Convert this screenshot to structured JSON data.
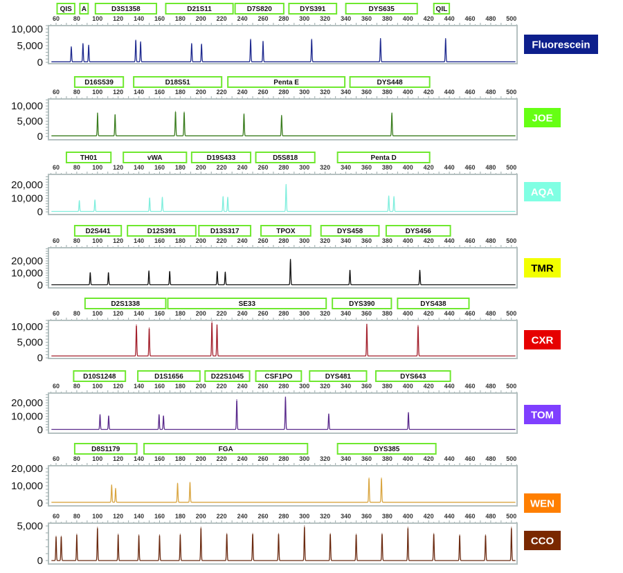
{
  "chart_data": {
    "type": "line",
    "x_axis": {
      "range": [
        55,
        505
      ],
      "tick_labels": [
        60,
        80,
        100,
        120,
        140,
        160,
        180,
        200,
        220,
        240,
        260,
        280,
        300,
        320,
        340,
        360,
        380,
        400,
        420,
        440,
        460,
        480,
        500
      ]
    },
    "grid": false,
    "panels": [
      {
        "dye": "Fluorescein",
        "label_color": "#0d1f8c",
        "label_text_color": "#ffffff",
        "trace_color": "#1f2a8f",
        "ylim": [
          -400,
          11000
        ],
        "yticks": [
          0,
          5000,
          10000
        ],
        "baseline": 150,
        "markers": [
          {
            "name": "QIS",
            "start": 61,
            "end": 78
          },
          {
            "name": "A",
            "start": 83,
            "end": 91
          },
          {
            "name": "D3S1358",
            "start": 98,
            "end": 157
          },
          {
            "name": "D21S11",
            "start": 166,
            "end": 231
          },
          {
            "name": "D7S820",
            "start": 233,
            "end": 280
          },
          {
            "name": "DYS391",
            "start": 285,
            "end": 331
          },
          {
            "name": "DYS635",
            "start": 340,
            "end": 409
          },
          {
            "name": "QIL",
            "start": 425,
            "end": 440
          }
        ],
        "peaks": [
          [
            74.7,
            4500
          ],
          [
            86,
            5500
          ],
          [
            91.5,
            5000
          ],
          [
            137,
            6500
          ],
          [
            141.7,
            6000
          ],
          [
            191,
            5500
          ],
          [
            200.6,
            5300
          ],
          [
            248,
            6800
          ],
          [
            260,
            6200
          ],
          [
            307,
            6800
          ],
          [
            373.5,
            7000
          ],
          [
            436.4,
            7000
          ]
        ]
      },
      {
        "dye": "JOE",
        "label_color": "#66ff14",
        "label_text_color": "#ffffff",
        "trace_color": "#3a7d1e",
        "ylim": [
          -1100,
          12300
        ],
        "yticks": [
          0,
          5000,
          10000
        ],
        "baseline": 200,
        "markers": [
          {
            "name": "D16S539",
            "start": 78,
            "end": 125
          },
          {
            "name": "D18S51",
            "start": 135,
            "end": 220
          },
          {
            "name": "Penta E",
            "start": 226,
            "end": 339
          },
          {
            "name": "DYS448",
            "start": 344,
            "end": 421
          }
        ],
        "peaks": [
          [
            100.1,
            7500
          ],
          [
            117,
            7000
          ],
          [
            175.4,
            8000
          ],
          [
            183.8,
            7800
          ],
          [
            241.6,
            7200
          ],
          [
            277.9,
            6700
          ],
          [
            384.5,
            7500
          ]
        ]
      },
      {
        "dye": "AQA",
        "label_color": "#80ffe3",
        "label_text_color": "#ffffff",
        "trace_color": "#7feedd",
        "ylim": [
          -2000,
          27700
        ],
        "yticks": [
          0,
          10000,
          20000
        ],
        "baseline": 300,
        "markers": [
          {
            "name": "TH01",
            "start": 70,
            "end": 113
          },
          {
            "name": "vWA",
            "start": 125,
            "end": 186
          },
          {
            "name": "D19S433",
            "start": 191,
            "end": 248
          },
          {
            "name": "D5S818",
            "start": 253,
            "end": 310
          },
          {
            "name": "Penta D",
            "start": 332,
            "end": 421
          }
        ],
        "peaks": [
          [
            82.5,
            8000
          ],
          [
            97.5,
            8500
          ],
          [
            150.4,
            10000
          ],
          [
            162.7,
            10500
          ],
          [
            221.4,
            11000
          ],
          [
            225.9,
            10500
          ],
          [
            282.3,
            20000
          ],
          [
            381.5,
            11500
          ],
          [
            386.5,
            11000
          ]
        ]
      },
      {
        "dye": "TMR",
        "label_color": "#f2ff00",
        "label_text_color": "#000000",
        "trace_color": "#111111",
        "ylim": [
          -2300,
          30900
        ],
        "yticks": [
          0,
          10000,
          20000
        ],
        "baseline": 300,
        "markers": [
          {
            "name": "D2S441",
            "start": 78,
            "end": 123
          },
          {
            "name": "D12S391",
            "start": 129,
            "end": 195
          },
          {
            "name": "D13S317",
            "start": 198,
            "end": 248
          },
          {
            "name": "TPOX",
            "start": 258,
            "end": 306
          },
          {
            "name": "DYS458",
            "start": 316,
            "end": 372
          },
          {
            "name": "DYS456",
            "start": 379,
            "end": 441
          }
        ],
        "peaks": [
          [
            93,
            10000
          ],
          [
            110.6,
            10000
          ],
          [
            149.7,
            11500
          ],
          [
            169.8,
            11000
          ],
          [
            215.7,
            11000
          ],
          [
            223.5,
            10500
          ],
          [
            286.5,
            21000
          ],
          [
            344,
            12000
          ],
          [
            411.5,
            12000
          ]
        ]
      },
      {
        "dye": "CXR",
        "label_color": "#e60000",
        "label_text_color": "#ffffff",
        "trace_color": "#a3202c",
        "ylim": [
          -200,
          12000
        ],
        "yticks": [
          0,
          5000,
          10000
        ],
        "baseline": 600,
        "markers": [
          {
            "name": "D2S1338",
            "start": 88,
            "end": 166
          },
          {
            "name": "SE33",
            "start": 168,
            "end": 321
          },
          {
            "name": "DYS390",
            "start": 327,
            "end": 384
          },
          {
            "name": "DYS438",
            "start": 390,
            "end": 459
          }
        ],
        "peaks": [
          [
            137.6,
            10000
          ],
          [
            150,
            9000
          ],
          [
            210.6,
            11000
          ],
          [
            215.5,
            10000
          ],
          [
            360.3,
            10200
          ],
          [
            409.8,
            9800
          ]
        ]
      },
      {
        "dye": "TOM",
        "label_color": "#7f3fff",
        "label_text_color": "#ffffff",
        "trace_color": "#5a2a8c",
        "ylim": [
          -2500,
          27200
        ],
        "yticks": [
          0,
          10000,
          20000
        ],
        "baseline": 300,
        "markers": [
          {
            "name": "D10S1248",
            "start": 77,
            "end": 127
          },
          {
            "name": "D1S1656",
            "start": 139,
            "end": 199
          },
          {
            "name": "D22S1045",
            "start": 204,
            "end": 247
          },
          {
            "name": "CSF1PO",
            "start": 253,
            "end": 297
          },
          {
            "name": "DYS481",
            "start": 305,
            "end": 360
          },
          {
            "name": "DYS643",
            "start": 369,
            "end": 441
          }
        ],
        "peaks": [
          [
            102.5,
            11000
          ],
          [
            110.8,
            10000
          ],
          [
            159.5,
            11000
          ],
          [
            163.8,
            10000
          ],
          [
            234.6,
            22000
          ],
          [
            281.7,
            24000
          ],
          [
            323.5,
            11500
          ],
          [
            400.5,
            12500
          ]
        ]
      },
      {
        "dye": "WEN",
        "label_color": "#ff7f00",
        "label_text_color": "#ffffff",
        "trace_color": "#d9a540",
        "ylim": [
          -1600,
          21600
        ],
        "yticks": [
          0,
          10000,
          20000
        ],
        "baseline": 500,
        "markers": [
          {
            "name": "D8S1179",
            "start": 78,
            "end": 138
          },
          {
            "name": "FGA",
            "start": 145,
            "end": 303
          },
          {
            "name": "DYS385",
            "start": 332,
            "end": 427
          }
        ],
        "peaks": [
          [
            113.7,
            10000
          ],
          [
            117.5,
            8000
          ],
          [
            177.4,
            11000
          ],
          [
            189.4,
            11500
          ],
          [
            362.4,
            14000
          ],
          [
            374.4,
            14000
          ]
        ]
      },
      {
        "dye": "CCO",
        "label_color": "#7a2800",
        "label_text_color": "#ffffff",
        "trace_color": "#6b2a10",
        "ylim": [
          -500,
          5400
        ],
        "yticks": [
          0,
          5000
        ],
        "baseline": 0,
        "markers": [],
        "peaks": [
          [
            60,
            3500
          ],
          [
            65,
            3500
          ],
          [
            80,
            3800
          ],
          [
            100,
            4800
          ],
          [
            120,
            3800
          ],
          [
            140,
            3700
          ],
          [
            160,
            3700
          ],
          [
            180,
            3800
          ],
          [
            200,
            4800
          ],
          [
            225,
            3900
          ],
          [
            250,
            3900
          ],
          [
            275,
            3900
          ],
          [
            300,
            5000
          ],
          [
            325,
            3900
          ],
          [
            350,
            3800
          ],
          [
            375,
            3900
          ],
          [
            400,
            4800
          ],
          [
            425,
            3900
          ],
          [
            450,
            3700
          ],
          [
            475,
            3700
          ],
          [
            500,
            4800
          ]
        ]
      }
    ]
  }
}
